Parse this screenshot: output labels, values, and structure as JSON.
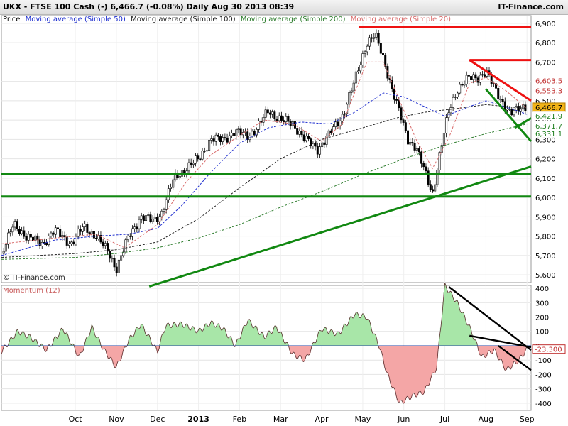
{
  "header": {
    "symbol_line": "UKX - FTSE 100 Cash (-)    6,466.7 (-0.08%)     Daily  Aug 30 2013 08:39",
    "brand": "IT-Finance.com"
  },
  "legend": [
    {
      "label": "Price",
      "color": "#000000"
    },
    {
      "label": "Moving average (Simple 50)",
      "color": "#1f2fcf"
    },
    {
      "label": "Moving average (Simple 100)",
      "color": "#222222"
    },
    {
      "label": "Moving average (Simple 200)",
      "color": "#2e7d2e"
    },
    {
      "label": "Moving average (Simple 20)",
      "color": "#d96b6b"
    }
  ],
  "copyright": "© IT-Finance.com",
  "sub_title": "Momentum (12)",
  "colors": {
    "up_fill": "#a8e6a8",
    "down_fill": "#f4a6a6",
    "trend_green": "#118811",
    "trend_red": "#ee1111",
    "trend_black": "#000000",
    "last_price_box": "#f2b418"
  },
  "chart_data": [
    {
      "type": "candlestick",
      "title": "UKX - FTSE 100 Cash",
      "y_ticks": [
        "6,900",
        "6,800",
        "6,700",
        "6,600",
        "6,500",
        "6,400",
        "6,300",
        "6,200",
        "6,100",
        "6,000",
        "5,900",
        "5,800",
        "5,700",
        "5,600"
      ],
      "ylim": [
        5560,
        6940
      ],
      "x_ticks": [
        "Oct",
        "Nov",
        "Dec",
        "2013",
        "Feb",
        "Mar",
        "Apr",
        "May",
        "Jun",
        "Jul",
        "Aug",
        "Sep"
      ],
      "x_tick_months": [
        1,
        2,
        3,
        4,
        5,
        6,
        7,
        8,
        9,
        10,
        11,
        12
      ],
      "x_range_months": [
        -0.8,
        12.1
      ],
      "close_series": [
        [
          -0.8,
          5710
        ],
        [
          -0.5,
          5860
        ],
        [
          -0.2,
          5800
        ],
        [
          0.2,
          5760
        ],
        [
          0.5,
          5830
        ],
        [
          0.9,
          5760
        ],
        [
          1.2,
          5850
        ],
        [
          1.5,
          5800
        ],
        [
          1.8,
          5720
        ],
        [
          2.0,
          5630
        ],
        [
          2.3,
          5800
        ],
        [
          2.6,
          5900
        ],
        [
          2.9,
          5880
        ],
        [
          3.1,
          5920
        ],
        [
          3.4,
          6100
        ],
        [
          3.7,
          6150
        ],
        [
          4.0,
          6200
        ],
        [
          4.3,
          6300
        ],
        [
          4.6,
          6300
        ],
        [
          4.9,
          6340
        ],
        [
          5.2,
          6320
        ],
        [
          5.4,
          6350
        ],
        [
          5.7,
          6450
        ],
        [
          6.0,
          6400
        ],
        [
          6.3,
          6380
        ],
        [
          6.6,
          6300
        ],
        [
          6.9,
          6250
        ],
        [
          7.2,
          6330
        ],
        [
          7.5,
          6420
        ],
        [
          7.8,
          6600
        ],
        [
          8.1,
          6800
        ],
        [
          8.3,
          6840
        ],
        [
          8.5,
          6720
        ],
        [
          8.8,
          6500
        ],
        [
          9.1,
          6300
        ],
        [
          9.3,
          6260
        ],
        [
          9.5,
          6140
        ],
        [
          9.7,
          6020
        ],
        [
          9.9,
          6250
        ],
        [
          10.1,
          6450
        ],
        [
          10.3,
          6560
        ],
        [
          10.6,
          6620
        ],
        [
          10.8,
          6620
        ],
        [
          11.0,
          6650
        ],
        [
          11.3,
          6530
        ],
        [
          11.6,
          6430
        ],
        [
          11.9,
          6470
        ]
      ],
      "ma20": [
        [
          -0.8,
          5760
        ],
        [
          0.5,
          5790
        ],
        [
          1.5,
          5810
        ],
        [
          2.2,
          5740
        ],
        [
          3.0,
          5860
        ],
        [
          3.7,
          6080
        ],
        [
          4.3,
          6220
        ],
        [
          5.0,
          6320
        ],
        [
          5.6,
          6400
        ],
        [
          6.3,
          6380
        ],
        [
          7.0,
          6290
        ],
        [
          7.5,
          6380
        ],
        [
          8.1,
          6700
        ],
        [
          8.5,
          6700
        ],
        [
          8.9,
          6500
        ],
        [
          9.3,
          6300
        ],
        [
          9.7,
          6150
        ],
        [
          10.1,
          6310
        ],
        [
          10.6,
          6590
        ],
        [
          11.0,
          6620
        ],
        [
          11.5,
          6550
        ],
        [
          12.0,
          6460
        ]
      ],
      "ma50": [
        [
          -0.8,
          5700
        ],
        [
          0.5,
          5780
        ],
        [
          1.5,
          5800
        ],
        [
          2.3,
          5810
        ],
        [
          3.0,
          5840
        ],
        [
          3.6,
          5960
        ],
        [
          4.3,
          6130
        ],
        [
          5.0,
          6280
        ],
        [
          5.7,
          6360
        ],
        [
          6.5,
          6390
        ],
        [
          7.2,
          6380
        ],
        [
          7.8,
          6440
        ],
        [
          8.5,
          6540
        ],
        [
          9.0,
          6520
        ],
        [
          9.5,
          6470
        ],
        [
          10.0,
          6420
        ],
        [
          10.6,
          6470
        ],
        [
          11.0,
          6500
        ],
        [
          11.6,
          6460
        ],
        [
          12.0,
          6430
        ]
      ],
      "ma100": [
        [
          -0.8,
          5690
        ],
        [
          1.0,
          5710
        ],
        [
          2.0,
          5730
        ],
        [
          3.0,
          5770
        ],
        [
          4.0,
          5890
        ],
        [
          5.0,
          6050
        ],
        [
          6.0,
          6200
        ],
        [
          7.0,
          6300
        ],
        [
          8.0,
          6360
        ],
        [
          8.8,
          6410
        ],
        [
          9.5,
          6440
        ],
        [
          10.3,
          6460
        ],
        [
          11.0,
          6480
        ],
        [
          12.0,
          6460
        ]
      ],
      "ma200": [
        [
          -0.8,
          5680
        ],
        [
          1.0,
          5690
        ],
        [
          2.0,
          5710
        ],
        [
          3.0,
          5740
        ],
        [
          4.0,
          5790
        ],
        [
          5.0,
          5860
        ],
        [
          6.0,
          5950
        ],
        [
          7.0,
          6030
        ],
        [
          8.0,
          6120
        ],
        [
          9.0,
          6200
        ],
        [
          10.0,
          6270
        ],
        [
          11.0,
          6330
        ],
        [
          12.0,
          6380
        ]
      ],
      "price_labels": [
        {
          "text": "6,603.5",
          "value": 6603.5,
          "color": "#c03030",
          "fill": "#ffffff"
        },
        {
          "text": "6,553.3",
          "value": 6553.3,
          "color": "#c03030",
          "fill": "#ffffff"
        },
        {
          "text": "6,466.7",
          "value": 6466.7,
          "color": "#000000",
          "fill": "#f2b418"
        },
        {
          "text": "6,421.9",
          "value": 6421.9,
          "color": "#1f7f1f",
          "fill": "#ffffff"
        },
        {
          "text": "6,371.7",
          "value": 6371.7,
          "color": "#1f7f1f",
          "fill": "#ffffff"
        },
        {
          "text": "6,331.1",
          "value": 6331.1,
          "color": "#1f7f1f",
          "fill": "#ffffff"
        }
      ],
      "trendlines": [
        {
          "color": "#ee1111",
          "points": [
            [
              7.9,
              6880
            ],
            [
              12.1,
              6880
            ]
          ]
        },
        {
          "color": "#ee1111",
          "points": [
            [
              10.6,
              6710
            ],
            [
              12.1,
              6710
            ]
          ]
        },
        {
          "color": "#ee1111",
          "points": [
            [
              10.6,
              6710
            ],
            [
              12.1,
              6500
            ]
          ]
        },
        {
          "color": "#118811",
          "points": [
            [
              -0.8,
              6120
            ],
            [
              12.1,
              6120
            ]
          ]
        },
        {
          "color": "#118811",
          "points": [
            [
              -0.8,
              6005
            ],
            [
              12.1,
              6005
            ]
          ]
        },
        {
          "color": "#118811",
          "points": [
            [
              2.8,
              5540
            ],
            [
              12.1,
              6160
            ]
          ]
        },
        {
          "color": "#118811",
          "points": [
            [
              11.0,
              6560
            ],
            [
              12.1,
              6290
            ]
          ]
        },
        {
          "color": "#118811",
          "points": [
            [
              11.7,
              6360
            ],
            [
              12.1,
              6410
            ]
          ]
        }
      ]
    },
    {
      "type": "area",
      "title": "Momentum (12)",
      "y_ticks": [
        "400",
        "300",
        "200",
        "100",
        "0",
        "-100",
        "-200",
        "-300",
        "-400"
      ],
      "ylim": [
        -450,
        420
      ],
      "series": [
        {
          "values": [
            [
              -0.8,
              -40
            ],
            [
              -0.4,
              100
            ],
            [
              -0.1,
              60
            ],
            [
              0.3,
              -30
            ],
            [
              0.7,
              120
            ],
            [
              1.1,
              -80
            ],
            [
              1.4,
              130
            ],
            [
              1.7,
              -30
            ],
            [
              2.0,
              -150
            ],
            [
              2.3,
              40
            ],
            [
              2.6,
              150
            ],
            [
              3.0,
              -40
            ],
            [
              3.2,
              140
            ],
            [
              3.6,
              150
            ],
            [
              4.0,
              100
            ],
            [
              4.3,
              160
            ],
            [
              4.6,
              120
            ],
            [
              4.9,
              0
            ],
            [
              5.2,
              180
            ],
            [
              5.6,
              60
            ],
            [
              5.9,
              130
            ],
            [
              6.3,
              -60
            ],
            [
              6.6,
              -100
            ],
            [
              7.0,
              120
            ],
            [
              7.4,
              80
            ],
            [
              7.8,
              220
            ],
            [
              8.1,
              200
            ],
            [
              8.4,
              0
            ],
            [
              8.6,
              -200
            ],
            [
              8.9,
              -400
            ],
            [
              9.2,
              -350
            ],
            [
              9.5,
              -320
            ],
            [
              9.8,
              -150
            ],
            [
              10.0,
              420
            ],
            [
              10.3,
              300
            ],
            [
              10.6,
              130
            ],
            [
              10.9,
              -80
            ],
            [
              11.2,
              -30
            ],
            [
              11.5,
              -170
            ],
            [
              11.8,
              -100
            ],
            [
              12.0,
              -23.3
            ]
          ]
        }
      ],
      "last_value_label": "-23.300",
      "trendlines": [
        {
          "color": "#000000",
          "points": [
            [
              10.1,
              410
            ],
            [
              12.1,
              -30
            ]
          ]
        },
        {
          "color": "#000000",
          "points": [
            [
              10.6,
              70
            ],
            [
              12.1,
              -10
            ]
          ]
        },
        {
          "color": "#000000",
          "points": [
            [
              11.3,
              0
            ],
            [
              12.1,
              -170
            ]
          ]
        }
      ]
    }
  ]
}
